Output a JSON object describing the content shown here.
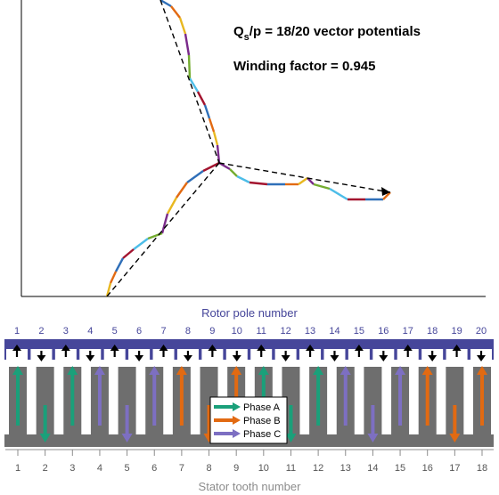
{
  "vector_plot": {
    "title_main": "Q",
    "title_sub": "s",
    "title_rest": "/p = 18/20 vector potentials",
    "winding_factor_text": "Winding factor = 0.945"
  },
  "machine": {
    "rotor_title": "Rotor pole number",
    "stator_title": "Stator tooth number",
    "rotor_poles": [
      "1",
      "2",
      "3",
      "4",
      "5",
      "6",
      "7",
      "8",
      "9",
      "10",
      "11",
      "12",
      "13",
      "14",
      "15",
      "16",
      "17",
      "18",
      "19",
      "20"
    ],
    "rotor_pole_directions": [
      "up",
      "down",
      "up",
      "down",
      "up",
      "down",
      "up",
      "down",
      "up",
      "down",
      "up",
      "down",
      "up",
      "down",
      "up",
      "down",
      "up",
      "down",
      "up",
      "down"
    ],
    "stator_teeth": [
      "1",
      "2",
      "3",
      "4",
      "5",
      "6",
      "7",
      "8",
      "9",
      "10",
      "11",
      "12",
      "13",
      "14",
      "15",
      "16",
      "17",
      "18"
    ],
    "tooth_coils": [
      {
        "phase": "A",
        "dir": "up"
      },
      {
        "phase": "A",
        "dir": "down"
      },
      {
        "phase": "A",
        "dir": "up"
      },
      {
        "phase": "C",
        "dir": "up"
      },
      {
        "phase": "C",
        "dir": "down"
      },
      {
        "phase": "C",
        "dir": "up"
      },
      {
        "phase": "B",
        "dir": "up"
      },
      {
        "phase": "B",
        "dir": "down"
      },
      {
        "phase": "B",
        "dir": "up"
      },
      {
        "phase": "A",
        "dir": "up"
      },
      {
        "phase": "A",
        "dir": "down"
      },
      {
        "phase": "A",
        "dir": "up"
      },
      {
        "phase": "C",
        "dir": "up"
      },
      {
        "phase": "C",
        "dir": "down"
      },
      {
        "phase": "C",
        "dir": "up"
      },
      {
        "phase": "B",
        "dir": "up"
      },
      {
        "phase": "B",
        "dir": "down"
      },
      {
        "phase": "B",
        "dir": "up"
      }
    ]
  },
  "legend": {
    "items": [
      {
        "label": "Phase A",
        "color": "#1aa07a"
      },
      {
        "label": "Phase B",
        "color": "#e26a12"
      },
      {
        "label": "Phase C",
        "color": "#7d6fc2"
      }
    ]
  },
  "colors": {
    "rotor": "#46469a",
    "rotor_label": "#46469a",
    "stator": "#6e6e6e",
    "stator_label": "#8c8c8c",
    "axis": "#000000"
  }
}
